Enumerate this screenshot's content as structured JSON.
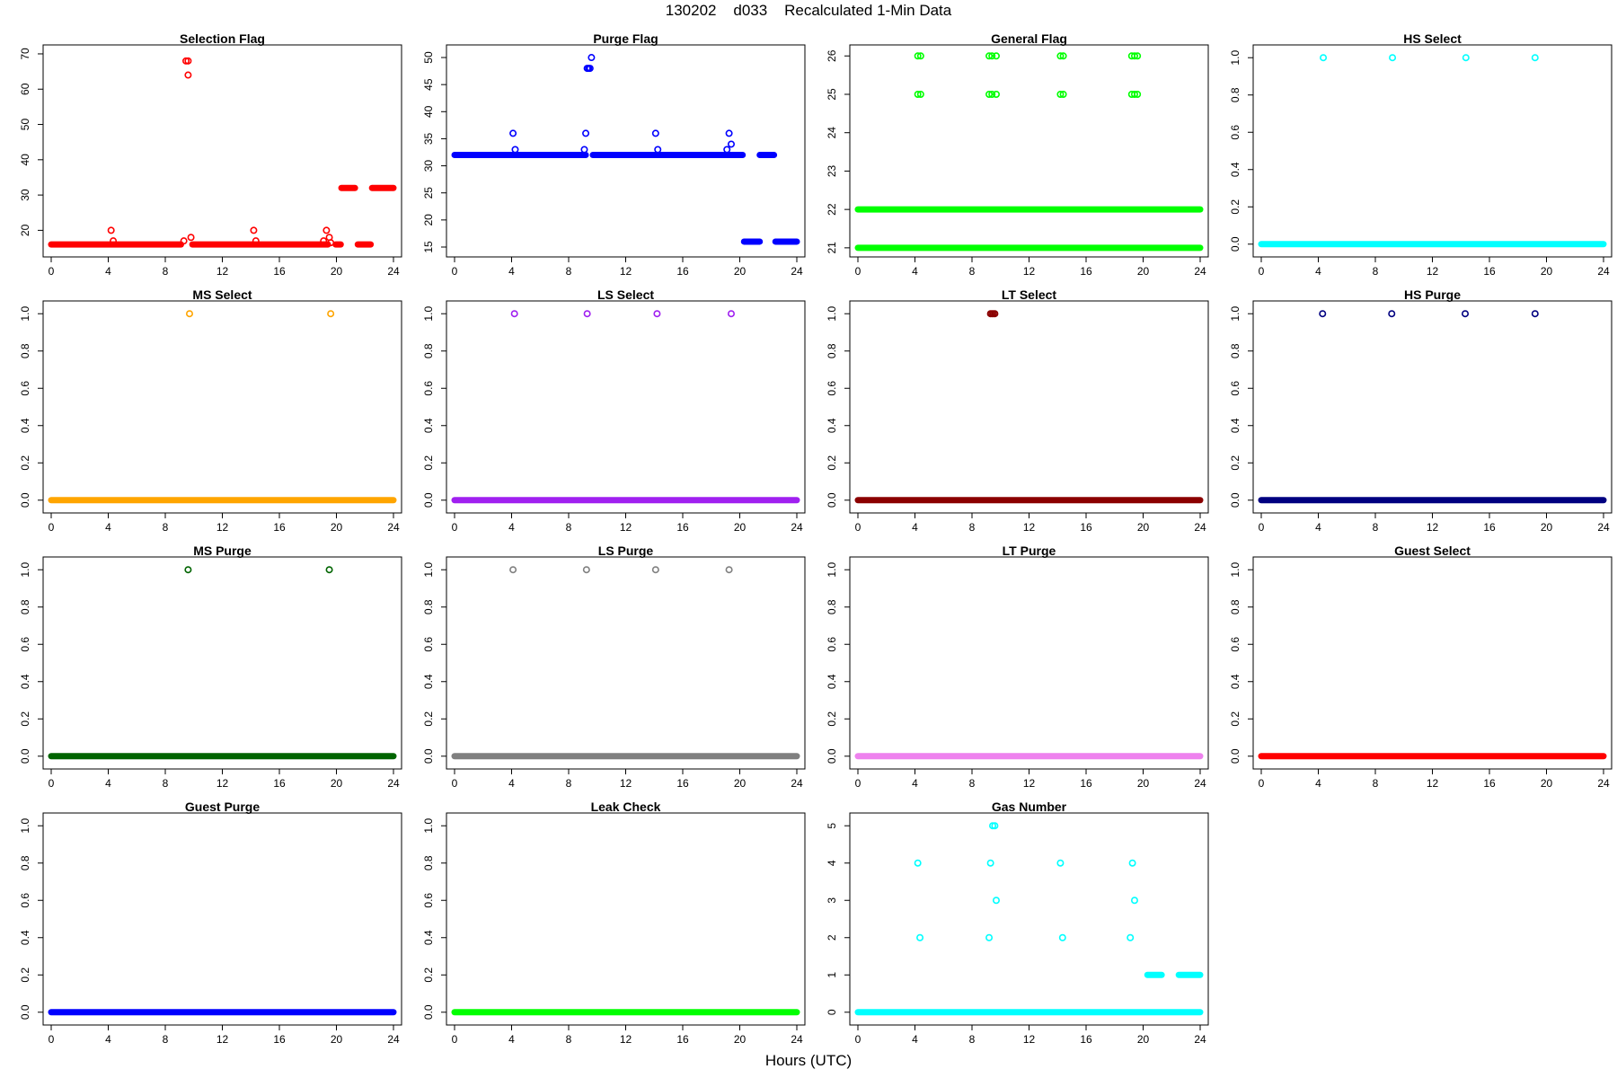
{
  "title": "130202    d033    Recalculated 1-Min Data",
  "xlabel": "Hours (UTC)",
  "chart_data": [
    {
      "type": "scatter",
      "title": "Selection Flag",
      "color": "#ff0000",
      "xlim": [
        0,
        24
      ],
      "ylim": [
        14.5,
        70.5
      ],
      "xticks": [
        0,
        4,
        8,
        12,
        16,
        20,
        24
      ],
      "yticks": [
        20,
        30,
        40,
        50,
        60,
        70
      ],
      "yfmt": 0,
      "baseline": [
        {
          "y": 16,
          "x0": 0,
          "x1": 9.1
        },
        {
          "y": 16,
          "x0": 9.9,
          "x1": 19.4
        },
        {
          "y": 16,
          "x0": 19.95,
          "x1": 20.3
        },
        {
          "y": 32,
          "x0": 20.35,
          "x1": 21.3
        },
        {
          "y": 16,
          "x0": 21.5,
          "x1": 22.4
        },
        {
          "y": 32,
          "x0": 22.5,
          "x1": 24
        }
      ],
      "points": [
        [
          4.2,
          20
        ],
        [
          4.35,
          17
        ],
        [
          9.3,
          17
        ],
        [
          9.45,
          68
        ],
        [
          9.6,
          68
        ],
        [
          9.6,
          64
        ],
        [
          9.8,
          18
        ],
        [
          14.2,
          20
        ],
        [
          14.35,
          17
        ],
        [
          19.1,
          17
        ],
        [
          19.3,
          20
        ],
        [
          19.5,
          18
        ],
        [
          19.6,
          16.5
        ]
      ]
    },
    {
      "type": "scatter",
      "title": "Purge Flag",
      "color": "#0000ff",
      "xlim": [
        0,
        24
      ],
      "ylim": [
        14.5,
        51
      ],
      "xticks": [
        0,
        4,
        8,
        12,
        16,
        20,
        24
      ],
      "yticks": [
        15,
        20,
        25,
        30,
        35,
        40,
        45,
        50
      ],
      "yfmt": 0,
      "baseline": [
        {
          "y": 32,
          "x0": 0,
          "x1": 9.2
        },
        {
          "y": 32,
          "x0": 9.7,
          "x1": 20.2
        },
        {
          "y": 16,
          "x0": 20.3,
          "x1": 21.4
        },
        {
          "y": 32,
          "x0": 21.4,
          "x1": 22.4
        },
        {
          "y": 16,
          "x0": 22.5,
          "x1": 24
        }
      ],
      "points": [
        [
          4.1,
          36
        ],
        [
          4.25,
          33
        ],
        [
          9.1,
          33
        ],
        [
          9.2,
          36
        ],
        [
          9.3,
          48
        ],
        [
          9.4,
          48
        ],
        [
          9.5,
          48
        ],
        [
          9.6,
          50
        ],
        [
          14.1,
          36
        ],
        [
          14.25,
          33
        ],
        [
          19.1,
          33
        ],
        [
          19.25,
          36
        ],
        [
          19.4,
          34
        ]
      ]
    },
    {
      "type": "scatter",
      "title": "General Flag",
      "color": "#00ff00",
      "xlim": [
        0,
        24
      ],
      "ylim": [
        20.95,
        26.1
      ],
      "xticks": [
        0,
        4,
        8,
        12,
        16,
        20,
        24
      ],
      "yticks": [
        21,
        22,
        23,
        24,
        25,
        26
      ],
      "yfmt": 0,
      "baseline": [
        {
          "y": 22,
          "x0": 0,
          "x1": 24
        },
        {
          "y": 21,
          "x0": 0,
          "x1": 24
        }
      ],
      "points": [
        [
          4.2,
          26
        ],
        [
          4.4,
          26
        ],
        [
          4.2,
          25
        ],
        [
          4.4,
          25
        ],
        [
          9.2,
          26
        ],
        [
          9.4,
          26
        ],
        [
          9.7,
          26
        ],
        [
          9.2,
          25
        ],
        [
          9.4,
          25
        ],
        [
          9.7,
          25
        ],
        [
          14.2,
          26
        ],
        [
          14.4,
          26
        ],
        [
          14.2,
          25
        ],
        [
          14.4,
          25
        ],
        [
          19.2,
          26
        ],
        [
          19.4,
          26
        ],
        [
          19.6,
          26
        ],
        [
          19.2,
          25
        ],
        [
          19.4,
          25
        ],
        [
          19.6,
          25
        ]
      ]
    },
    {
      "type": "scatter",
      "title": "HS Select",
      "color": "#00ffff",
      "xlim": [
        0,
        24
      ],
      "ylim": [
        -0.03,
        1.03
      ],
      "xticks": [
        0,
        4,
        8,
        12,
        16,
        20,
        24
      ],
      "yticks": [
        0,
        0.2,
        0.4,
        0.6,
        0.8,
        1
      ],
      "yfmt": 1,
      "baseline": [
        {
          "y": 0,
          "x0": 0,
          "x1": 24
        }
      ],
      "points": [
        [
          4.35,
          1
        ],
        [
          9.2,
          1
        ],
        [
          14.35,
          1
        ],
        [
          19.2,
          1
        ]
      ]
    },
    {
      "type": "scatter",
      "title": "MS Select",
      "color": "#ffa500",
      "xlim": [
        0,
        24
      ],
      "ylim": [
        -0.03,
        1.03
      ],
      "xticks": [
        0,
        4,
        8,
        12,
        16,
        20,
        24
      ],
      "yticks": [
        0,
        0.2,
        0.4,
        0.6,
        0.8,
        1
      ],
      "yfmt": 1,
      "baseline": [
        {
          "y": 0,
          "x0": 0,
          "x1": 24
        }
      ],
      "points": [
        [
          9.7,
          1
        ],
        [
          19.6,
          1
        ]
      ]
    },
    {
      "type": "scatter",
      "title": "LS Select",
      "color": "#a020f0",
      "xlim": [
        0,
        24
      ],
      "ylim": [
        -0.03,
        1.03
      ],
      "xticks": [
        0,
        4,
        8,
        12,
        16,
        20,
        24
      ],
      "yticks": [
        0,
        0.2,
        0.4,
        0.6,
        0.8,
        1
      ],
      "yfmt": 1,
      "baseline": [
        {
          "y": 0,
          "x0": 0,
          "x1": 24
        }
      ],
      "points": [
        [
          4.2,
          1
        ],
        [
          9.3,
          1
        ],
        [
          14.2,
          1
        ],
        [
          19.4,
          1
        ]
      ]
    },
    {
      "type": "scatter",
      "title": "LT Select",
      "color": "#8b0000",
      "xlim": [
        0,
        24
      ],
      "ylim": [
        -0.03,
        1.03
      ],
      "xticks": [
        0,
        4,
        8,
        12,
        16,
        20,
        24
      ],
      "yticks": [
        0,
        0.2,
        0.4,
        0.6,
        0.8,
        1
      ],
      "yfmt": 1,
      "baseline": [
        {
          "y": 0,
          "x0": 0,
          "x1": 24
        }
      ],
      "points": [
        [
          9.3,
          1
        ],
        [
          9.4,
          1
        ],
        [
          9.5,
          1
        ],
        [
          9.6,
          1
        ]
      ]
    },
    {
      "type": "scatter",
      "title": "HS Purge",
      "color": "#000080",
      "xlim": [
        0,
        24
      ],
      "ylim": [
        -0.03,
        1.03
      ],
      "xticks": [
        0,
        4,
        8,
        12,
        16,
        20,
        24
      ],
      "yticks": [
        0,
        0.2,
        0.4,
        0.6,
        0.8,
        1
      ],
      "yfmt": 1,
      "baseline": [
        {
          "y": 0,
          "x0": 0,
          "x1": 24
        }
      ],
      "points": [
        [
          4.3,
          1
        ],
        [
          9.15,
          1
        ],
        [
          14.3,
          1
        ],
        [
          19.2,
          1
        ]
      ]
    },
    {
      "type": "scatter",
      "title": "MS Purge",
      "color": "#006400",
      "xlim": [
        0,
        24
      ],
      "ylim": [
        -0.03,
        1.03
      ],
      "xticks": [
        0,
        4,
        8,
        12,
        16,
        20,
        24
      ],
      "yticks": [
        0,
        0.2,
        0.4,
        0.6,
        0.8,
        1
      ],
      "yfmt": 1,
      "baseline": [
        {
          "y": 0,
          "x0": 0,
          "x1": 24
        }
      ],
      "points": [
        [
          9.6,
          1
        ],
        [
          19.5,
          1
        ]
      ]
    },
    {
      "type": "scatter",
      "title": "LS Purge",
      "color": "#808080",
      "xlim": [
        0,
        24
      ],
      "ylim": [
        -0.03,
        1.03
      ],
      "xticks": [
        0,
        4,
        8,
        12,
        16,
        20,
        24
      ],
      "yticks": [
        0,
        0.2,
        0.4,
        0.6,
        0.8,
        1
      ],
      "yfmt": 1,
      "baseline": [
        {
          "y": 0,
          "x0": 0,
          "x1": 24
        }
      ],
      "points": [
        [
          4.1,
          1
        ],
        [
          9.25,
          1
        ],
        [
          14.1,
          1
        ],
        [
          19.25,
          1
        ]
      ]
    },
    {
      "type": "scatter",
      "title": "LT Purge",
      "color": "#ee82ee",
      "xlim": [
        0,
        24
      ],
      "ylim": [
        -0.03,
        1.03
      ],
      "xticks": [
        0,
        4,
        8,
        12,
        16,
        20,
        24
      ],
      "yticks": [
        0,
        0.2,
        0.4,
        0.6,
        0.8,
        1
      ],
      "yfmt": 1,
      "baseline": [
        {
          "y": 0,
          "x0": 0,
          "x1": 24
        }
      ],
      "points": []
    },
    {
      "type": "scatter",
      "title": "Guest Select",
      "color": "#ff0000",
      "xlim": [
        0,
        24
      ],
      "ylim": [
        -0.03,
        1.03
      ],
      "xticks": [
        0,
        4,
        8,
        12,
        16,
        20,
        24
      ],
      "yticks": [
        0,
        0.2,
        0.4,
        0.6,
        0.8,
        1
      ],
      "yfmt": 1,
      "baseline": [
        {
          "y": 0,
          "x0": 0,
          "x1": 24
        }
      ],
      "points": []
    },
    {
      "type": "scatter",
      "title": "Guest Purge",
      "color": "#0000ff",
      "xlim": [
        0,
        24
      ],
      "ylim": [
        -0.03,
        1.03
      ],
      "xticks": [
        0,
        4,
        8,
        12,
        16,
        20,
        24
      ],
      "yticks": [
        0,
        0.2,
        0.4,
        0.6,
        0.8,
        1
      ],
      "yfmt": 1,
      "baseline": [
        {
          "y": 0,
          "x0": 0,
          "x1": 24
        }
      ],
      "points": []
    },
    {
      "type": "scatter",
      "title": "Leak Check",
      "color": "#00ff00",
      "xlim": [
        0,
        24
      ],
      "ylim": [
        -0.03,
        1.03
      ],
      "xticks": [
        0,
        4,
        8,
        12,
        16,
        20,
        24
      ],
      "yticks": [
        0,
        0.2,
        0.4,
        0.6,
        0.8,
        1
      ],
      "yfmt": 1,
      "baseline": [
        {
          "y": 0,
          "x0": 0,
          "x1": 24
        }
      ],
      "points": []
    },
    {
      "type": "scatter",
      "title": "Gas Number",
      "color": "#00ffff",
      "xlim": [
        0,
        24
      ],
      "ylim": [
        -0.15,
        5.15
      ],
      "xticks": [
        0,
        4,
        8,
        12,
        16,
        20,
        24
      ],
      "yticks": [
        0,
        1,
        2,
        3,
        4,
        5
      ],
      "yfmt": 0,
      "baseline": [
        {
          "y": 0,
          "x0": 0,
          "x1": 24
        },
        {
          "y": 1,
          "x0": 20.3,
          "x1": 21.3
        },
        {
          "y": 1,
          "x0": 22.5,
          "x1": 24
        }
      ],
      "points": [
        [
          4.2,
          4
        ],
        [
          4.35,
          2
        ],
        [
          9.2,
          2
        ],
        [
          9.3,
          4
        ],
        [
          9.45,
          5
        ],
        [
          9.6,
          5
        ],
        [
          9.7,
          3
        ],
        [
          14.2,
          4
        ],
        [
          14.35,
          2
        ],
        [
          19.1,
          2
        ],
        [
          19.25,
          4
        ],
        [
          19.4,
          3
        ]
      ]
    }
  ]
}
